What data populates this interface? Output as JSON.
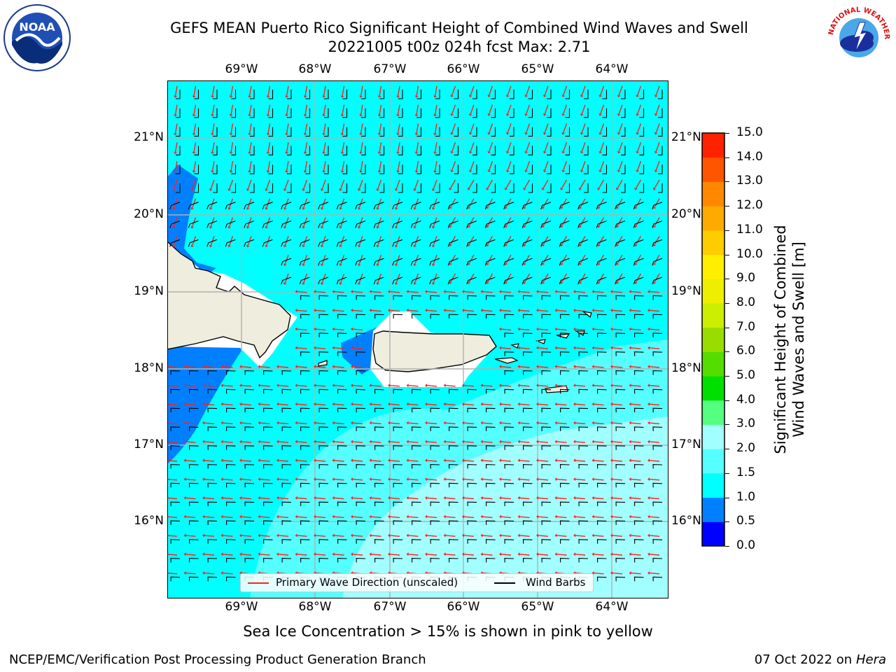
{
  "title": {
    "line1": "GEFS MEAN Puerto Rico Significant Height of Combined Wind Waves and Swell",
    "line2": "20221005 t00z 024h fcst   Max: 2.71"
  },
  "logos": {
    "left": "NOAA",
    "right": "NATIONAL WEATHER SERVICE"
  },
  "map": {
    "lon_labels": [
      "69°W",
      "68°W",
      "67°W",
      "66°W",
      "65°W",
      "64°W"
    ],
    "lat_labels": [
      "21°N",
      "20°N",
      "19°N",
      "18°N",
      "17°N",
      "16°N"
    ],
    "colors": {
      "land": "#efedde",
      "ocean_mid": "#00ffff",
      "ocean_light": "#55ffff",
      "ocean_lighter": "#a2ffff",
      "ocean_blue": "#0080ff",
      "arrow": "#ff2020",
      "barb": "#000000"
    }
  },
  "legend": {
    "wave_direction": "Primary Wave Direction (unscaled)",
    "wind_barbs": "Wind Barbs"
  },
  "colorbar": {
    "label_line1": "Significant Height of Combined",
    "label_line2": "Wind Waves and Swell [m]",
    "ticks": [
      "0.0",
      "0.5",
      "1.0",
      "1.5",
      "2.0",
      "3.0",
      "4.0",
      "5.0",
      "6.0",
      "7.0",
      "8.0",
      "9.0",
      "10.0",
      "11.0",
      "12.0",
      "13.0",
      "14.0",
      "15.0"
    ],
    "colors": [
      "#0000ff",
      "#0080ff",
      "#00ffff",
      "#55ffff",
      "#a2ffff",
      "#55ff80",
      "#00e000",
      "#55dd00",
      "#99dd00",
      "#ccee00",
      "#eeee00",
      "#ffee00",
      "#ffcc00",
      "#ffaa00",
      "#ff8800",
      "#ff5500",
      "#ff2200"
    ]
  },
  "ice_note": "Sea Ice Concentration > 15% is shown in pink to yellow",
  "footer": {
    "left": "NCEP/EMC/Verification Post Processing Product Generation Branch",
    "right_prefix": "07 Oct 2022 on ",
    "right_machine": "Hera"
  }
}
